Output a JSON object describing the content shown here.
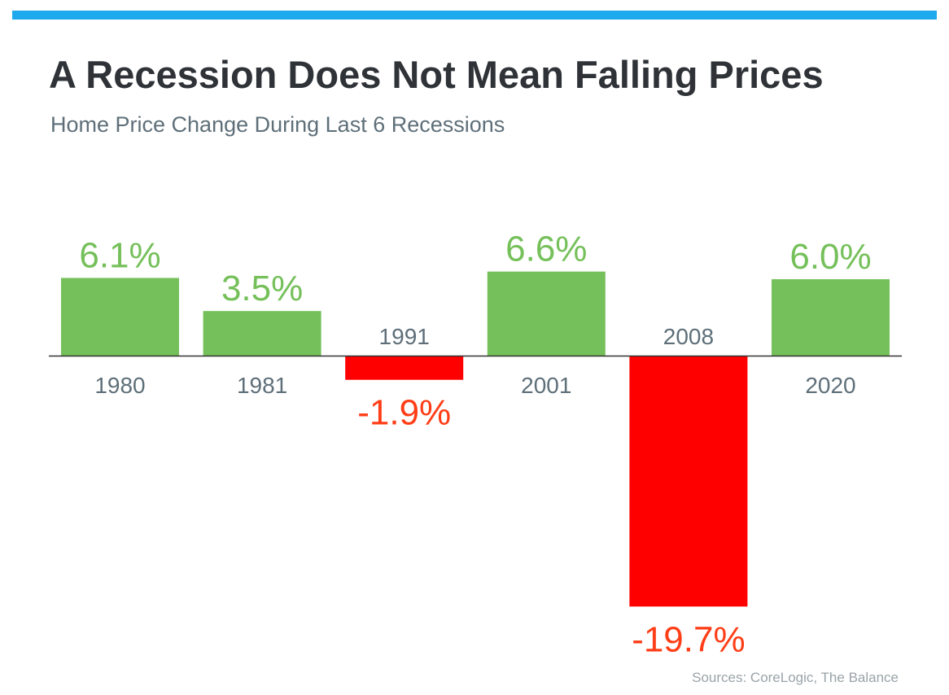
{
  "header": {
    "title": "A Recession Does Not Mean Falling Prices",
    "subtitle": "Home Price Change During Last 6 Recessions"
  },
  "footer": {
    "source": "Sources: CoreLogic, The Balance"
  },
  "colors": {
    "accent_bar": "#1ea9ec",
    "positive_bar": "#75c05a",
    "negative_bar": "#ff0000",
    "positive_label": "#75c05a",
    "negative_label": "#ff3d16",
    "category_label": "#5e6f79",
    "axis": "#333333"
  },
  "chart_data": {
    "type": "bar",
    "title": "A Recession Does Not Mean Falling Prices",
    "subtitle": "Home Price Change During Last 6 Recessions",
    "categories": [
      "1980",
      "1981",
      "1991",
      "2001",
      "2008",
      "2020"
    ],
    "values": [
      6.1,
      3.5,
      -1.9,
      6.6,
      -19.7,
      6.0
    ],
    "data_labels": [
      "6.1%",
      "3.5%",
      "-1.9%",
      "6.6%",
      "-19.7%",
      "6.0%"
    ],
    "unit": "%",
    "xlabel": "",
    "ylabel": "",
    "grid": false,
    "legend": "none"
  }
}
